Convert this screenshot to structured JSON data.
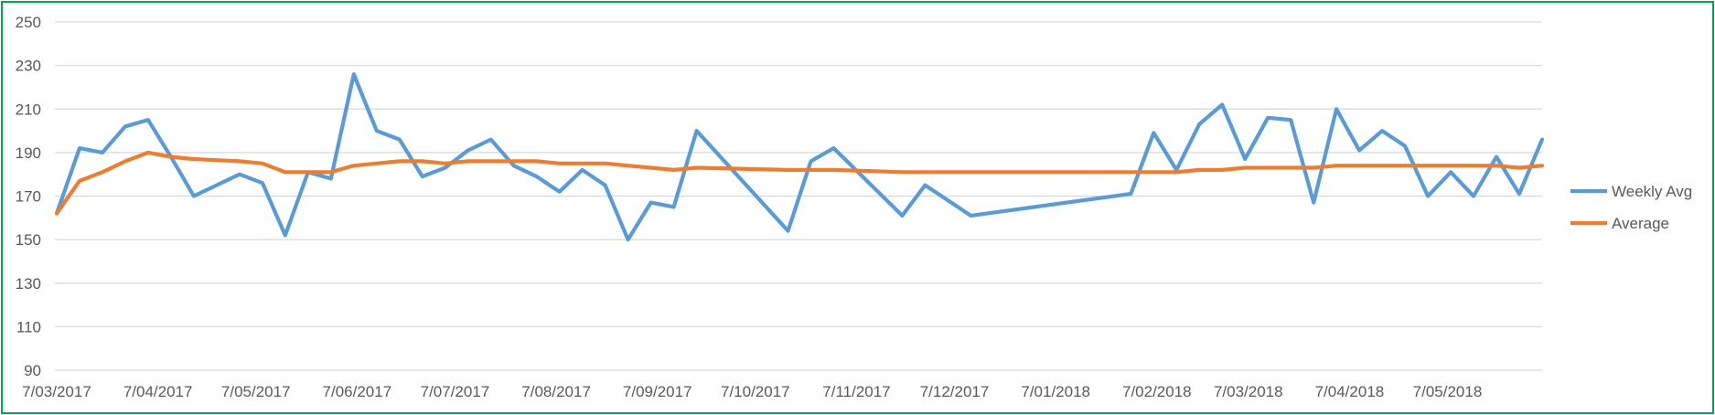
{
  "chart_data": {
    "type": "line",
    "title": "",
    "xlabel": "",
    "ylabel": "",
    "ylim": [
      90,
      250
    ],
    "y_ticks": [
      "250",
      "230",
      "210",
      "190",
      "170",
      "150",
      "130",
      "110",
      "90"
    ],
    "x_tick_labels": [
      "7/03/2017",
      "7/04/2017",
      "7/05/2017",
      "7/06/2017",
      "7/07/2017",
      "7/08/2017",
      "7/09/2017",
      "7/10/2017",
      "7/11/2017",
      "7/12/2017",
      "7/01/2018",
      "7/02/2018",
      "7/03/2018",
      "7/04/2018",
      "7/05/2018"
    ],
    "x_tick_dates": [
      "2017-03-07",
      "2017-04-07",
      "2017-05-07",
      "2017-06-07",
      "2017-07-07",
      "2017-08-07",
      "2017-09-07",
      "2017-10-07",
      "2017-11-07",
      "2017-12-07",
      "2018-01-07",
      "2018-02-07",
      "2018-03-07",
      "2018-04-07",
      "2018-05-07"
    ],
    "grid": true,
    "legend_position": "right",
    "series": [
      {
        "name": "Weekly Avg",
        "color": "#5b9bd5",
        "points": [
          [
            "2017-03-07",
            162
          ],
          [
            "2017-03-14",
            192
          ],
          [
            "2017-03-21",
            190
          ],
          [
            "2017-03-28",
            202
          ],
          [
            "2017-04-04",
            205
          ],
          [
            "2017-04-11",
            188
          ],
          [
            "2017-04-18",
            170
          ],
          [
            "2017-05-02",
            180
          ],
          [
            "2017-05-09",
            176
          ],
          [
            "2017-05-16",
            152
          ],
          [
            "2017-05-23",
            181
          ],
          [
            "2017-05-30",
            178
          ],
          [
            "2017-06-06",
            226
          ],
          [
            "2017-06-13",
            200
          ],
          [
            "2017-06-20",
            196
          ],
          [
            "2017-06-27",
            179
          ],
          [
            "2017-07-04",
            183
          ],
          [
            "2017-07-11",
            191
          ],
          [
            "2017-07-18",
            196
          ],
          [
            "2017-07-25",
            184
          ],
          [
            "2017-08-01",
            179
          ],
          [
            "2017-08-08",
            172
          ],
          [
            "2017-08-15",
            182
          ],
          [
            "2017-08-22",
            175
          ],
          [
            "2017-08-29",
            150
          ],
          [
            "2017-09-05",
            167
          ],
          [
            "2017-09-12",
            165
          ],
          [
            "2017-09-19",
            200
          ],
          [
            "2017-10-17",
            154
          ],
          [
            "2017-10-24",
            186
          ],
          [
            "2017-10-31",
            192
          ],
          [
            "2017-11-21",
            161
          ],
          [
            "2017-11-28",
            175
          ],
          [
            "2017-12-12",
            161
          ],
          [
            "2018-01-30",
            171
          ],
          [
            "2018-02-06",
            199
          ],
          [
            "2018-02-13",
            182
          ],
          [
            "2018-02-20",
            203
          ],
          [
            "2018-02-27",
            212
          ],
          [
            "2018-03-06",
            187
          ],
          [
            "2018-03-13",
            206
          ],
          [
            "2018-03-20",
            205
          ],
          [
            "2018-03-27",
            167
          ],
          [
            "2018-04-03",
            210
          ],
          [
            "2018-04-10",
            191
          ],
          [
            "2018-04-17",
            200
          ],
          [
            "2018-04-24",
            193
          ],
          [
            "2018-05-01",
            170
          ],
          [
            "2018-05-08",
            181
          ],
          [
            "2018-05-15",
            170
          ],
          [
            "2018-05-22",
            188
          ],
          [
            "2018-05-29",
            171
          ],
          [
            "2018-06-05",
            196
          ]
        ]
      },
      {
        "name": "Average",
        "color": "#ed7d31",
        "points": [
          [
            "2017-03-07",
            162
          ],
          [
            "2017-03-14",
            177
          ],
          [
            "2017-03-21",
            181
          ],
          [
            "2017-03-28",
            186
          ],
          [
            "2017-04-04",
            190
          ],
          [
            "2017-04-11",
            188
          ],
          [
            "2017-04-18",
            187
          ],
          [
            "2017-05-02",
            186
          ],
          [
            "2017-05-09",
            185
          ],
          [
            "2017-05-16",
            181
          ],
          [
            "2017-05-23",
            181
          ],
          [
            "2017-05-30",
            181
          ],
          [
            "2017-06-06",
            184
          ],
          [
            "2017-06-13",
            185
          ],
          [
            "2017-06-20",
            186
          ],
          [
            "2017-06-27",
            186
          ],
          [
            "2017-07-04",
            185
          ],
          [
            "2017-07-11",
            186
          ],
          [
            "2017-07-18",
            186
          ],
          [
            "2017-07-25",
            186
          ],
          [
            "2017-08-01",
            186
          ],
          [
            "2017-08-08",
            185
          ],
          [
            "2017-08-15",
            185
          ],
          [
            "2017-08-22",
            185
          ],
          [
            "2017-08-29",
            184
          ],
          [
            "2017-09-05",
            183
          ],
          [
            "2017-09-12",
            182
          ],
          [
            "2017-09-19",
            183
          ],
          [
            "2017-10-17",
            182
          ],
          [
            "2017-10-24",
            182
          ],
          [
            "2017-10-31",
            182
          ],
          [
            "2017-11-21",
            181
          ],
          [
            "2017-11-28",
            181
          ],
          [
            "2017-12-12",
            181
          ],
          [
            "2018-01-30",
            181
          ],
          [
            "2018-02-06",
            181
          ],
          [
            "2018-02-13",
            181
          ],
          [
            "2018-02-20",
            182
          ],
          [
            "2018-02-27",
            182
          ],
          [
            "2018-03-06",
            183
          ],
          [
            "2018-03-13",
            183
          ],
          [
            "2018-03-20",
            183
          ],
          [
            "2018-03-27",
            183
          ],
          [
            "2018-04-03",
            184
          ],
          [
            "2018-04-10",
            184
          ],
          [
            "2018-04-17",
            184
          ],
          [
            "2018-04-24",
            184
          ],
          [
            "2018-05-01",
            184
          ],
          [
            "2018-05-08",
            184
          ],
          [
            "2018-05-15",
            184
          ],
          [
            "2018-05-22",
            184
          ],
          [
            "2018-05-29",
            183
          ],
          [
            "2018-06-05",
            184
          ]
        ]
      }
    ]
  }
}
